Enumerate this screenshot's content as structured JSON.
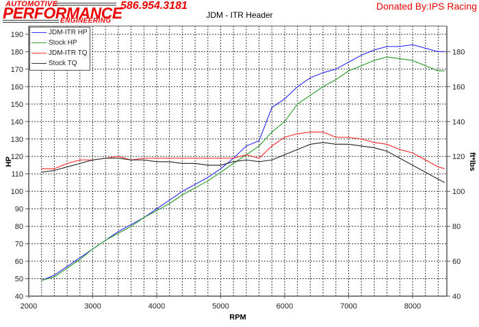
{
  "header": {
    "logo_line1": "AUTOMOTIVE",
    "logo_line2": "PERFORMANCE",
    "logo_line3": "ENGINEERING",
    "phone": "586.954.3181",
    "donated": "Donated By:IPS Racing"
  },
  "colors": {
    "brand_red": "#ee0000",
    "jdm_hp": "#3333ff",
    "stock_hp": "#33a033",
    "jdm_tq": "#ff3333",
    "stock_tq": "#333333"
  },
  "chart_data": {
    "type": "line",
    "title": "JDM - ITR Header",
    "xlabel": "RPM",
    "ylabel": "HP",
    "y2label": "ft*lbs",
    "xlim": [
      2000,
      8500
    ],
    "ylim": [
      40,
      190
    ],
    "y2lim": [
      40,
      190
    ],
    "x_ticks": [
      2000,
      3000,
      4000,
      5000,
      6000,
      7000,
      8000
    ],
    "y_ticks": [
      40,
      50,
      60,
      70,
      80,
      90,
      100,
      110,
      120,
      130,
      140,
      150,
      160,
      170,
      180,
      190
    ],
    "y2_ticks": [
      40,
      60,
      80,
      100,
      120,
      140,
      160,
      180
    ],
    "grid": true,
    "legend_position": "upper-left",
    "x": [
      2200,
      2400,
      2600,
      2800,
      3000,
      3200,
      3400,
      3600,
      3800,
      4000,
      4200,
      4400,
      4600,
      4800,
      5000,
      5200,
      5400,
      5600,
      5800,
      6000,
      6200,
      6400,
      6600,
      6800,
      7000,
      7200,
      7400,
      7600,
      7800,
      8000,
      8200,
      8400,
      8500
    ],
    "series": [
      {
        "name": "JDM-ITR HP",
        "axis": "left",
        "color": "#3333ff",
        "values": [
          49,
          52,
          57,
          62,
          67,
          72,
          77,
          81,
          85,
          90,
          95,
          100,
          104,
          108,
          113,
          119,
          126,
          129,
          148,
          153,
          160,
          165,
          168,
          170,
          174,
          178,
          181,
          183,
          183,
          184,
          182,
          180,
          180
        ]
      },
      {
        "name": "Stock HP",
        "axis": "left",
        "color": "#33a033",
        "values": [
          49,
          51,
          56,
          61,
          67,
          72,
          76,
          80,
          85,
          89,
          93,
          98,
          102,
          106,
          111,
          116,
          121,
          126,
          134,
          140,
          150,
          155,
          160,
          164,
          169,
          172,
          175,
          177,
          176,
          175,
          172,
          169,
          169
        ]
      },
      {
        "name": "JDM-ITR TQ",
        "axis": "right",
        "color": "#ff3333",
        "values": [
          113,
          113,
          116,
          118,
          118,
          119,
          120,
          118,
          119,
          119,
          119,
          119,
          119,
          119,
          119,
          119,
          121,
          119,
          126,
          131,
          133,
          134,
          134,
          131,
          131,
          130,
          128,
          127,
          124,
          122,
          118,
          114,
          113
        ]
      },
      {
        "name": "Stock TQ",
        "axis": "right",
        "color": "#333333",
        "values": [
          111,
          112,
          114,
          116,
          118,
          119,
          119,
          118,
          118,
          117,
          117,
          116,
          116,
          115,
          115,
          117,
          118,
          117,
          118,
          121,
          124,
          127,
          128,
          127,
          127,
          126,
          125,
          123,
          119,
          115,
          111,
          107,
          105
        ]
      }
    ]
  }
}
